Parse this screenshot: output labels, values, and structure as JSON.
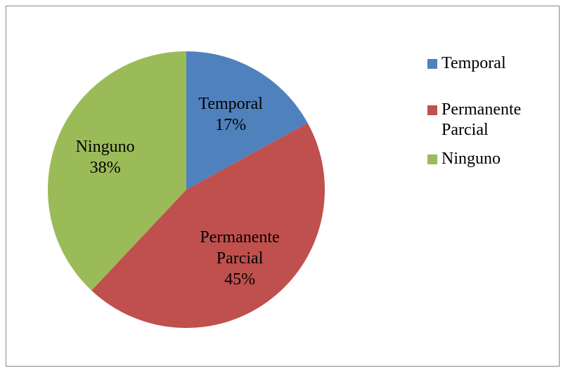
{
  "chart_data": {
    "type": "pie",
    "categories": [
      "Temporal",
      "Permanente Parcial",
      "Ninguno"
    ],
    "values": [
      17,
      45,
      38
    ],
    "value_labels": [
      "17%",
      "45%",
      "38%"
    ],
    "colors": [
      "#4f81bd",
      "#c0504d",
      "#9bbb59"
    ],
    "legend": "right"
  }
}
